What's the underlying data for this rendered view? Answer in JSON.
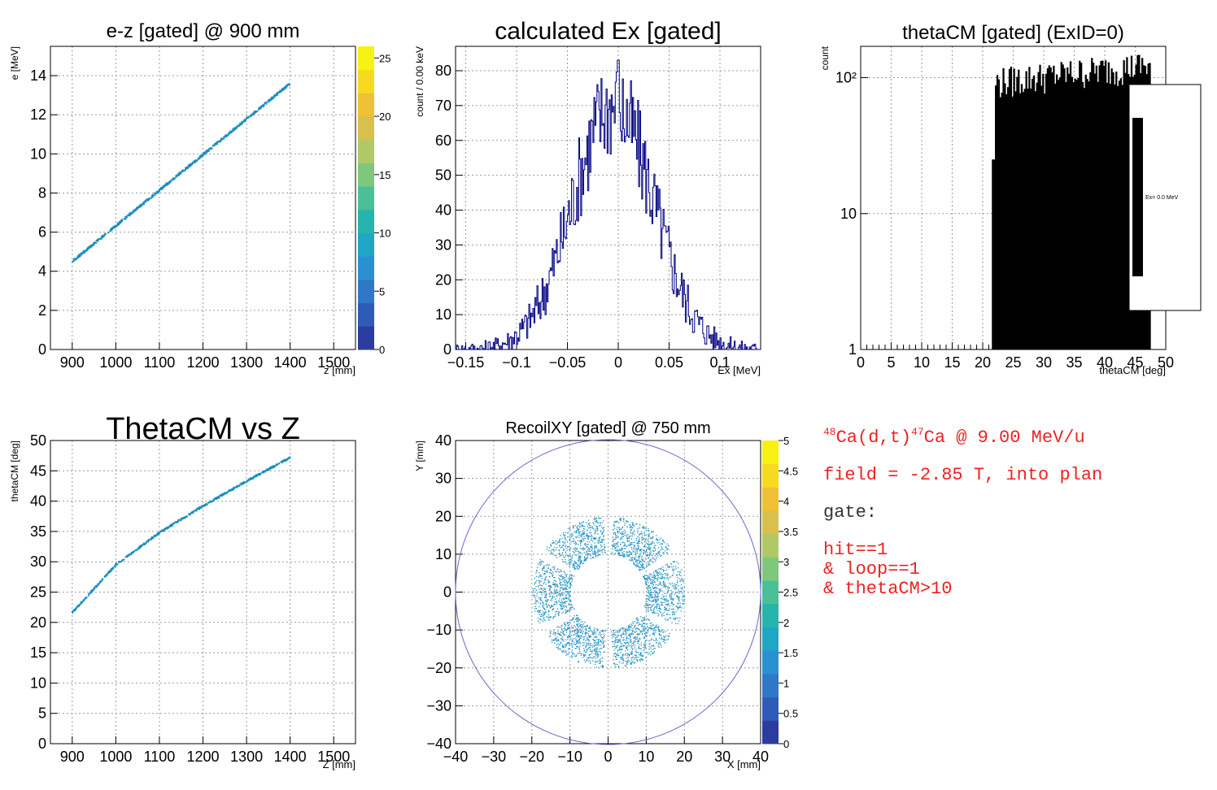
{
  "colors": {
    "axis": "#000000",
    "grid": "#9a9a9a",
    "hist_line": "#000080",
    "scatter": "#1f8fc0",
    "hist_fill": "#000000",
    "circle": "#6666cc",
    "info_red": "#ee2222",
    "info_gray": "#333333"
  },
  "chart_data": [
    {
      "id": "ez",
      "type": "scatter",
      "title": "e-z [gated] @   900 mm",
      "xlabel": "z [mm]",
      "ylabel": "e [MeV]",
      "xlim": [
        850,
        1550
      ],
      "ylim": [
        0,
        15.5
      ],
      "xticks": [
        900,
        1000,
        1100,
        1200,
        1300,
        1400,
        1500
      ],
      "yticks": [
        0,
        2,
        4,
        6,
        8,
        10,
        12,
        14
      ],
      "grid": true,
      "line": {
        "x": [
          900,
          1400
        ],
        "y": [
          4.5,
          13.6
        ]
      },
      "colorbar": {
        "range": [
          0,
          26
        ],
        "ticks": [
          0,
          5,
          10,
          15,
          20,
          25
        ]
      }
    },
    {
      "id": "ex",
      "type": "histogram",
      "title": "calculated Ex [gated]",
      "xlabel": "Ex [MeV]",
      "ylabel": "count / 0.00 keV",
      "xlim": [
        -0.16,
        0.14
      ],
      "ylim": [
        0,
        87
      ],
      "xticks": [
        -0.15,
        -0.1,
        -0.05,
        0,
        0.05,
        0.1
      ],
      "xtick_labels": [
        "−0.15",
        "−0.1",
        "−0.05",
        "0",
        "0.05",
        "0.1"
      ],
      "yticks": [
        0,
        10,
        20,
        30,
        40,
        50,
        60,
        70,
        80
      ],
      "grid": true,
      "distribution": {
        "shape": "gaussian",
        "mean": -0.005,
        "sigma": 0.04,
        "peak": 70,
        "max_bin": 83
      }
    },
    {
      "id": "theta",
      "type": "histogram",
      "title": "thetaCM [gated] (ExID=0)",
      "xlabel": "thetaCM [deg]",
      "ylabel": "count",
      "xlim": [
        0,
        50
      ],
      "ylim": [
        1,
        170
      ],
      "log_y": true,
      "xticks": [
        0,
        5,
        10,
        15,
        20,
        25,
        30,
        35,
        40,
        45,
        50
      ],
      "yticks": [
        1,
        10,
        100
      ],
      "ytick_labels": [
        "1",
        "10",
        "10²"
      ],
      "grid": true,
      "bins": {
        "start": 21.5,
        "end": 47.5,
        "typical": 90,
        "first": 25
      },
      "legend": {
        "label": "Ex=  0.0 MeV",
        "placement": "right"
      }
    },
    {
      "id": "thetaz",
      "type": "scatter",
      "title": "ThetaCM vs Z",
      "xlabel": "Z [mm]",
      "ylabel": "thetaCM [deg]",
      "xlim": [
        850,
        1550
      ],
      "ylim": [
        0,
        50
      ],
      "xticks": [
        900,
        1000,
        1100,
        1200,
        1300,
        1400,
        1500
      ],
      "yticks": [
        0,
        5,
        10,
        15,
        20,
        25,
        30,
        35,
        40,
        45,
        50
      ],
      "grid": true,
      "curve": {
        "x": [
          900,
          1000,
          1100,
          1200,
          1300,
          1400
        ],
        "y": [
          21.6,
          29.5,
          34.8,
          39.2,
          43.3,
          47.2
        ]
      }
    },
    {
      "id": "xy",
      "type": "scatter",
      "title": "RecoilXY [gated] @  750 mm",
      "xlabel": "X [mm]",
      "ylabel": "Y [mm]",
      "xlim": [
        -40,
        40
      ],
      "ylim": [
        -40,
        40
      ],
      "xticks": [
        -40,
        -30,
        -20,
        -10,
        0,
        10,
        20,
        30,
        40
      ],
      "yticks": [
        -40,
        -30,
        -20,
        -10,
        0,
        10,
        20,
        30,
        40
      ],
      "tick_labels_neg": [
        "−40",
        "−30",
        "−20",
        "−10",
        "0",
        "10",
        "20",
        "30",
        "40"
      ],
      "grid": true,
      "circle_radius": 40,
      "ring": {
        "inner": 10,
        "outer": 20,
        "sectors": 6,
        "gap_deg": 8
      },
      "colorbar": {
        "range": [
          0,
          5
        ],
        "ticks": [
          0,
          0.5,
          1,
          1.5,
          2,
          2.5,
          3,
          3.5,
          4,
          4.5,
          5
        ]
      }
    }
  ],
  "info": {
    "reaction": {
      "a1": "48",
      "b1": "Ca(d,t)",
      "a2": "47",
      "b2": "Ca @ 9.00 MeV/u"
    },
    "field": "field = -2.85 T, into plan",
    "gate_title": "gate:",
    "gate_lines": [
      "hit==1",
      "& loop==1",
      "& thetaCM>10"
    ]
  }
}
